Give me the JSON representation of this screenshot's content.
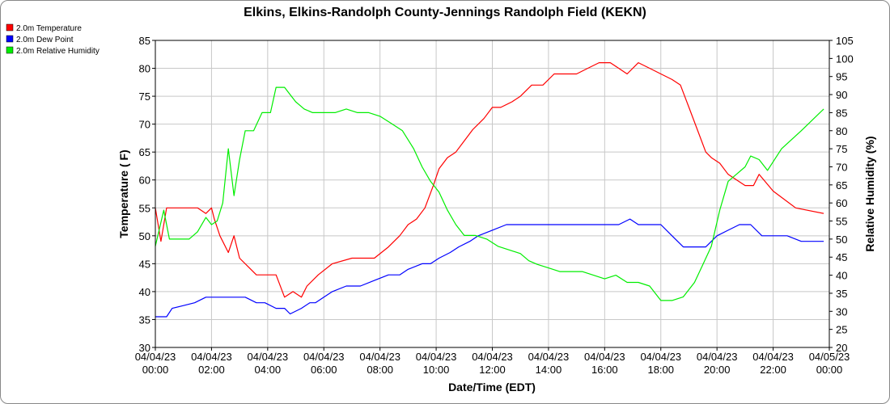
{
  "chart_data": {
    "type": "line",
    "title": "Elkins, Elkins-Randolph County-Jennings Randolph Field (KEKN)",
    "xlabel": "Date/Time (EDT)",
    "ylabel": "Temperature ( F)",
    "ylabel_right": "Relative Humidity (%)",
    "xlim": [
      0,
      24
    ],
    "ylim": [
      30,
      85
    ],
    "ylim_right": [
      20,
      105
    ],
    "y_ticks": [
      30,
      35,
      40,
      45,
      50,
      55,
      60,
      65,
      70,
      75,
      80,
      85
    ],
    "y_ticks_right": [
      20,
      25,
      30,
      35,
      40,
      45,
      50,
      55,
      60,
      65,
      70,
      75,
      80,
      85,
      90,
      95,
      100,
      105
    ],
    "x_ticks": [
      {
        "value": 0,
        "date": "04/04/23",
        "time": "00:00"
      },
      {
        "value": 2,
        "date": "04/04/23",
        "time": "02:00"
      },
      {
        "value": 4,
        "date": "04/04/23",
        "time": "04:00"
      },
      {
        "value": 6,
        "date": "04/04/23",
        "time": "06:00"
      },
      {
        "value": 8,
        "date": "04/04/23",
        "time": "08:00"
      },
      {
        "value": 10,
        "date": "04/04/23",
        "time": "10:00"
      },
      {
        "value": 12,
        "date": "04/04/23",
        "time": "12:00"
      },
      {
        "value": 14,
        "date": "04/04/23",
        "time": "14:00"
      },
      {
        "value": 16,
        "date": "04/04/23",
        "time": "16:00"
      },
      {
        "value": 18,
        "date": "04/04/23",
        "time": "18:00"
      },
      {
        "value": 20,
        "date": "04/04/23",
        "time": "20:00"
      },
      {
        "value": 22,
        "date": "04/04/23",
        "time": "22:00"
      },
      {
        "value": 24,
        "date": "04/05/23",
        "time": "00:00"
      }
    ],
    "grid": true,
    "legend_position": "top-left",
    "series": [
      {
        "name": "2.0m Temperature",
        "color": "#ff0000",
        "axis": "left",
        "x": [
          0,
          0.2,
          0.4,
          0.6,
          1.0,
          1.5,
          1.8,
          2.0,
          2.1,
          2.3,
          2.6,
          2.8,
          3.0,
          3.4,
          3.6,
          3.9,
          4.3,
          4.6,
          4.9,
          5.2,
          5.4,
          5.8,
          6.3,
          7.0,
          7.5,
          7.8,
          8.3,
          8.7,
          9.0,
          9.3,
          9.6,
          9.9,
          10.1,
          10.4,
          10.7,
          11.0,
          11.3,
          11.7,
          12.0,
          12.3,
          12.7,
          13.0,
          13.4,
          13.8,
          14.2,
          14.6,
          15.0,
          15.4,
          15.8,
          16.2,
          16.5,
          16.8,
          17.2,
          17.6,
          18.0,
          18.4,
          18.7,
          19.0,
          19.3,
          19.6,
          19.8,
          20.1,
          20.4,
          20.7,
          21.0,
          21.3,
          21.5,
          22.0,
          22.8,
          23.8
        ],
        "values": [
          55,
          49,
          55,
          55,
          55,
          55,
          54,
          55,
          53,
          50,
          47,
          50,
          46,
          44,
          43,
          43,
          43,
          39,
          40,
          39,
          41,
          43,
          45,
          46,
          46,
          46,
          48,
          50,
          52,
          53,
          55,
          59,
          62,
          64,
          65,
          67,
          69,
          71,
          73,
          73,
          74,
          75,
          77,
          77,
          79,
          79,
          79,
          80,
          81,
          81,
          80,
          79,
          81,
          80,
          79,
          78,
          77,
          73,
          69,
          65,
          64,
          63,
          61,
          60,
          59,
          59,
          61,
          58,
          55,
          54
        ]
      },
      {
        "name": "2.0m Dew Point",
        "color": "#0000ff",
        "axis": "left",
        "x": [
          0,
          0.4,
          0.6,
          1.0,
          1.4,
          1.8,
          2.2,
          2.5,
          2.8,
          3.2,
          3.6,
          3.9,
          4.3,
          4.6,
          4.8,
          5.2,
          5.5,
          5.7,
          6.0,
          6.3,
          6.8,
          7.3,
          7.8,
          8.3,
          8.7,
          9.0,
          9.5,
          9.8,
          10.1,
          10.5,
          10.8,
          11.2,
          11.5,
          12.0,
          12.5,
          13.0,
          13.5,
          14.0,
          14.5,
          15.0,
          15.5,
          16.0,
          16.5,
          16.9,
          17.2,
          17.6,
          18.0,
          18.4,
          18.8,
          19.2,
          19.6,
          20.0,
          20.4,
          20.8,
          21.2,
          21.6,
          22.0,
          22.5,
          23.0,
          23.5,
          23.8
        ],
        "values": [
          35.5,
          35.5,
          37,
          37.5,
          38,
          39,
          39,
          39,
          39,
          39,
          38,
          38,
          37,
          37,
          36,
          37,
          38,
          38,
          39,
          40,
          41,
          41,
          42,
          43,
          43,
          44,
          45,
          45,
          46,
          47,
          48,
          49,
          50,
          51,
          52,
          52,
          52,
          52,
          52,
          52,
          52,
          52,
          52,
          53,
          52,
          52,
          52,
          50,
          48,
          48,
          48,
          50,
          51,
          52,
          52,
          50,
          50,
          50,
          49,
          49,
          49
        ]
      },
      {
        "name": "2.0m Relative Humidity",
        "color": "#00ee00",
        "axis": "right",
        "x": [
          0,
          0.3,
          0.5,
          0.8,
          1.2,
          1.5,
          1.8,
          2.0,
          2.2,
          2.4,
          2.6,
          2.8,
          3.0,
          3.2,
          3.5,
          3.8,
          4.1,
          4.3,
          4.6,
          4.8,
          5.0,
          5.3,
          5.6,
          6.0,
          6.4,
          6.8,
          7.2,
          7.6,
          8.0,
          8.4,
          8.8,
          9.2,
          9.5,
          9.8,
          10.1,
          10.4,
          10.7,
          11.0,
          11.4,
          11.8,
          12.2,
          12.6,
          13.0,
          13.3,
          13.6,
          14.0,
          14.4,
          14.8,
          15.2,
          15.6,
          16.0,
          16.4,
          16.8,
          17.2,
          17.6,
          18.0,
          18.4,
          18.8,
          19.2,
          19.5,
          19.8,
          20.1,
          20.4,
          20.7,
          21.0,
          21.2,
          21.5,
          21.8,
          22.3,
          23.0,
          23.8
        ],
        "values": [
          48,
          58,
          50,
          50,
          50,
          52,
          56,
          54,
          55,
          60,
          75,
          62,
          72,
          80,
          80,
          85,
          85,
          92,
          92,
          90,
          88,
          86,
          85,
          85,
          85,
          86,
          85,
          85,
          84,
          82,
          80,
          75,
          70,
          66,
          63,
          58,
          54,
          51,
          51,
          50,
          48,
          47,
          46,
          44,
          43,
          42,
          41,
          41,
          41,
          40,
          39,
          40,
          38,
          38,
          37,
          33,
          33,
          34,
          38,
          43,
          48,
          58,
          66,
          68,
          70,
          73,
          72,
          69,
          75,
          80,
          86
        ]
      }
    ]
  }
}
